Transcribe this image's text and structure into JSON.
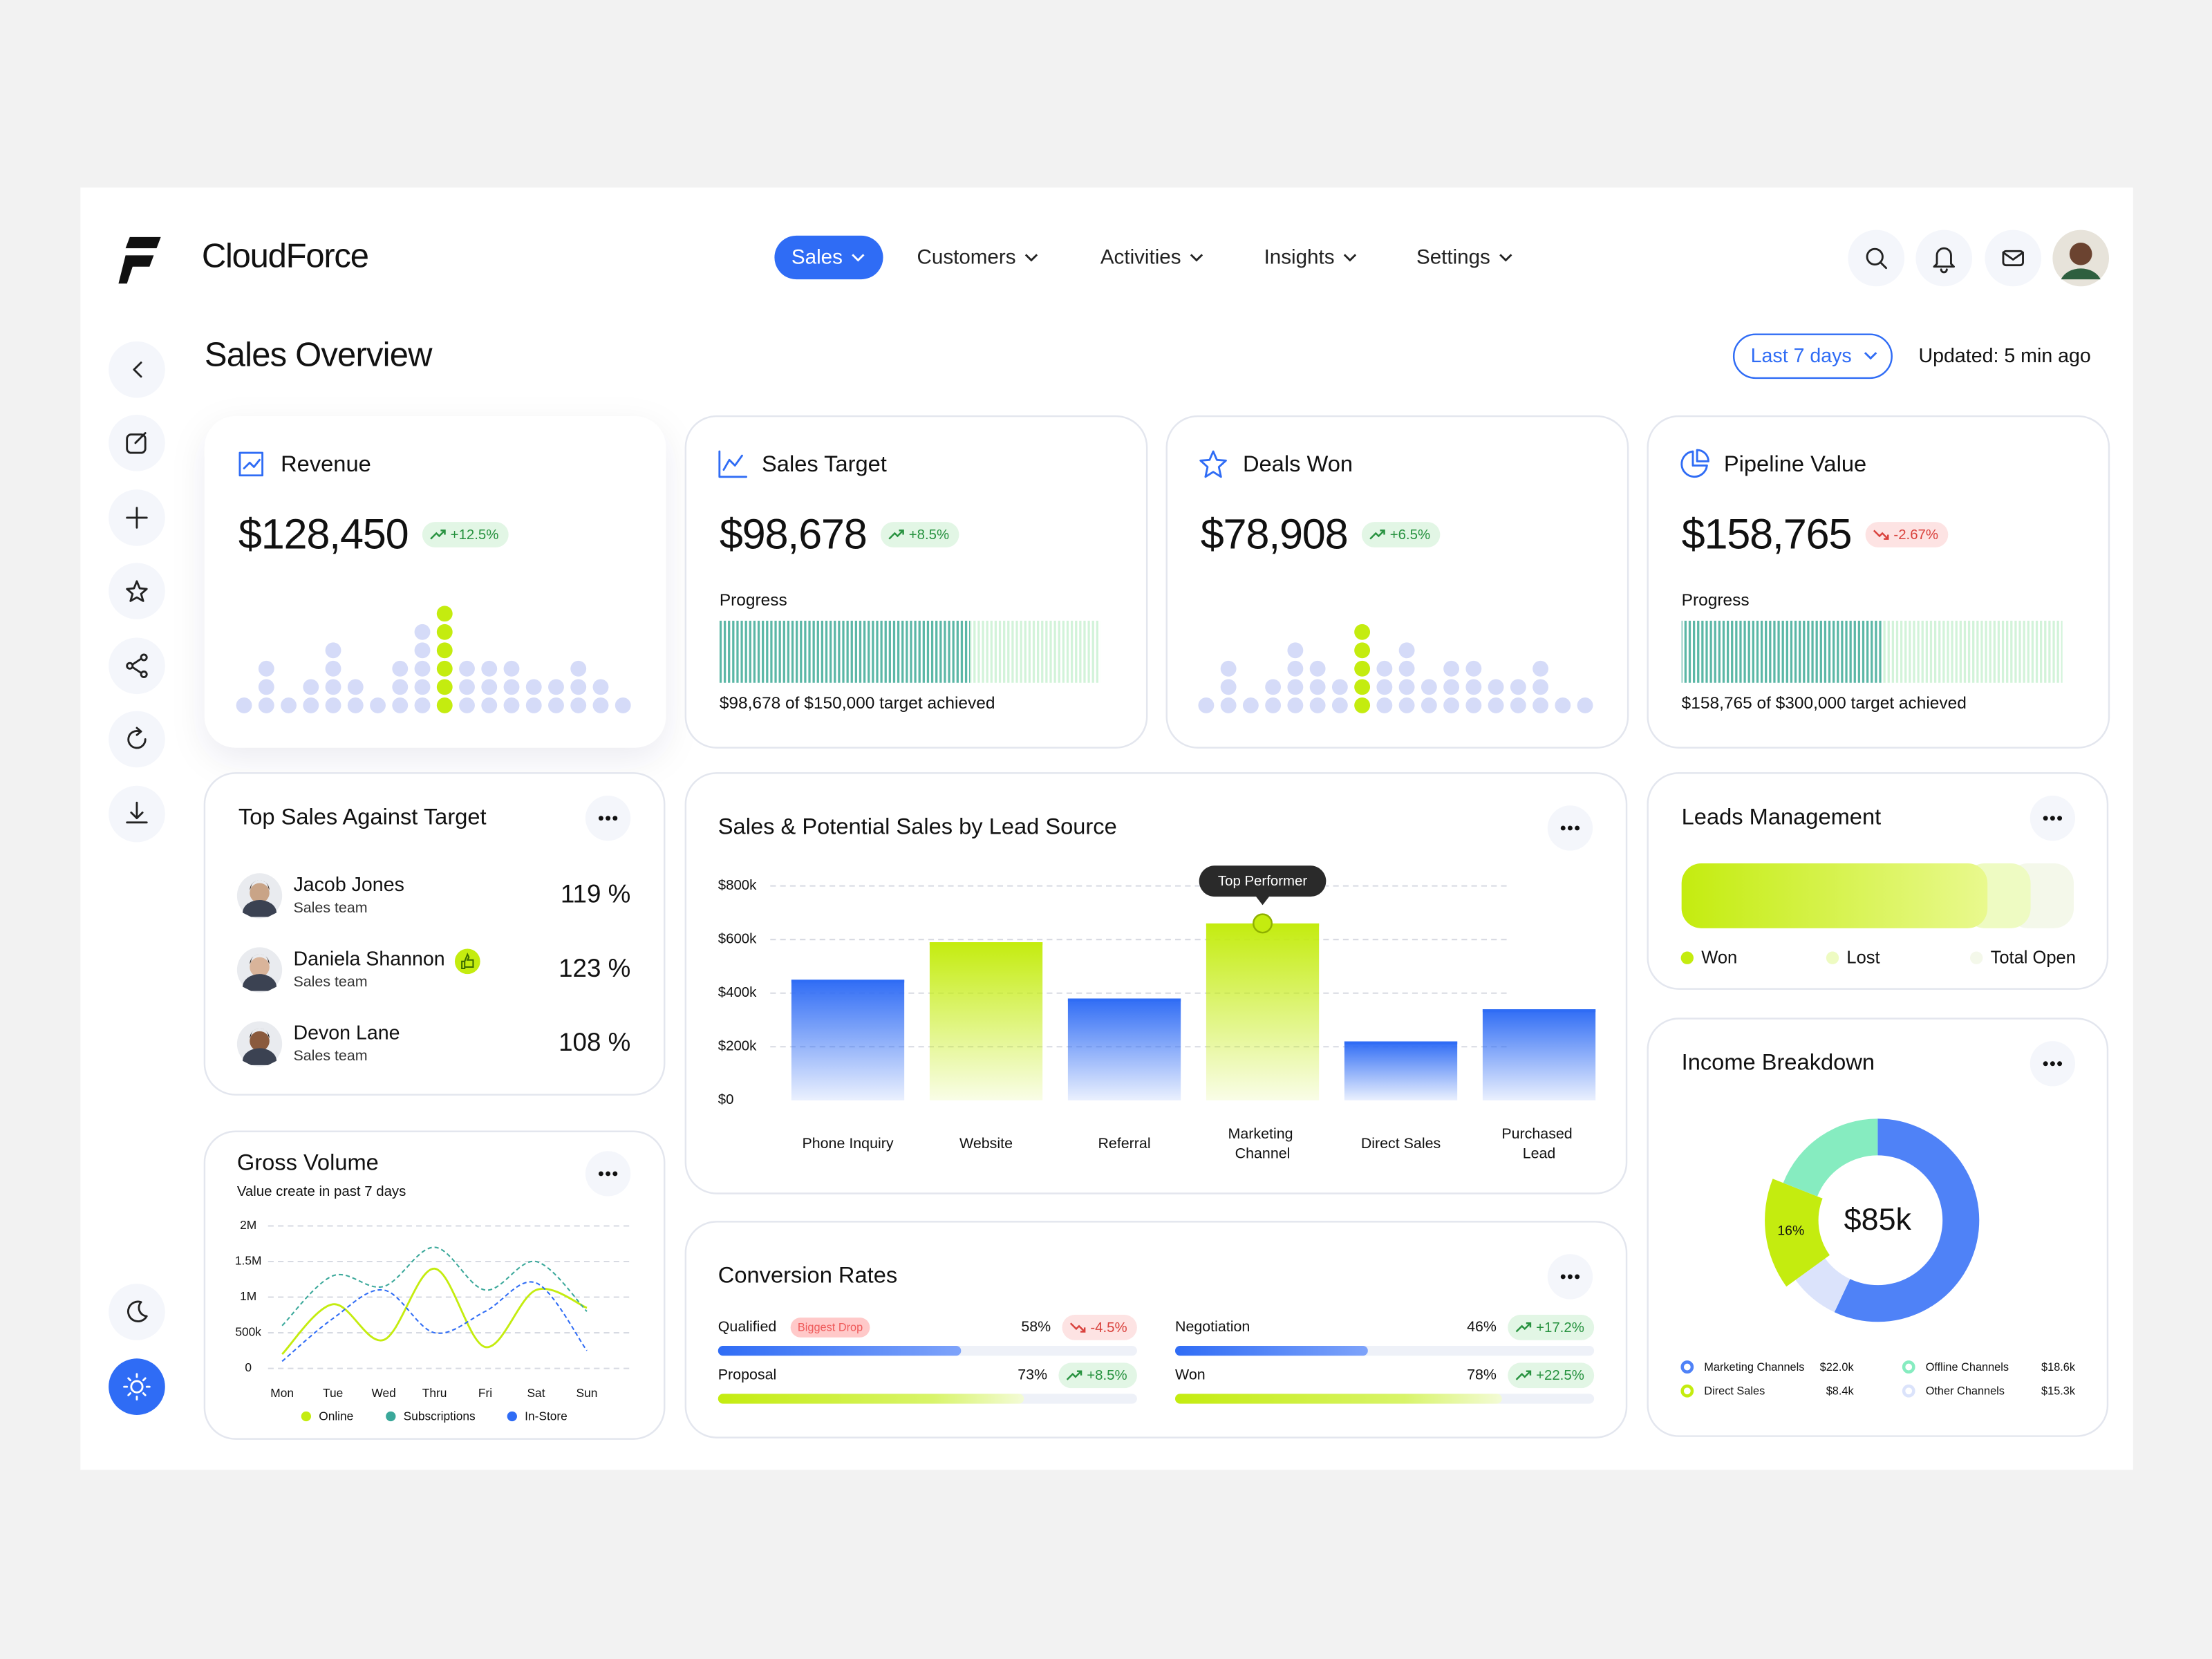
{
  "brand": "CloudForce",
  "nav": [
    {
      "label": "Sales",
      "active": true
    },
    {
      "label": "Customers",
      "active": false
    },
    {
      "label": "Activities",
      "active": false
    },
    {
      "label": "Insights",
      "active": false
    },
    {
      "label": "Settings",
      "active": false
    }
  ],
  "page_title": "Sales Overview",
  "range_button": "Last 7 days",
  "updated": "Updated: 5 min ago",
  "kpis": [
    {
      "title": "Revenue",
      "value": "$128,450",
      "change": "+12.5%",
      "trend": "up",
      "dots": [
        1,
        3,
        1,
        2,
        4,
        2,
        1,
        3,
        5,
        6,
        3,
        3,
        3,
        2,
        2,
        3,
        2,
        1
      ],
      "highlight": 9
    },
    {
      "title": "Sales Target",
      "value": "$98,678",
      "change": "+8.5%",
      "trend": "up",
      "progress_label": "Progress",
      "achieved": 98678,
      "target": 150000,
      "achieved_text": "$98,678 of $150,000 target achieved"
    },
    {
      "title": "Deals Won",
      "value": "$78,908",
      "change": "+6.5%",
      "trend": "up",
      "dots": [
        1,
        3,
        1,
        2,
        4,
        3,
        2,
        5,
        3,
        4,
        2,
        3,
        3,
        2,
        2,
        3,
        1,
        1
      ],
      "highlight": 7
    },
    {
      "title": "Pipeline Value",
      "value": "$158,765",
      "change": "-2.67%",
      "trend": "down",
      "progress_label": "Progress",
      "achieved": 158765,
      "target": 300000,
      "achieved_text": "$158,765 of $300,000 target achieved"
    }
  ],
  "top_sales": {
    "title": "Top Sales Against Target",
    "people": [
      {
        "name": "Jacob Jones",
        "team": "Sales team",
        "value": "119 %"
      },
      {
        "name": "Daniela Shannon",
        "team": "Sales team",
        "value": "123 %"
      },
      {
        "name": "Devon Lane",
        "team": "Sales team",
        "value": "108 %"
      }
    ]
  },
  "chart_data": [
    {
      "type": "bar",
      "title": "Sales & Potential Sales by Lead Source",
      "categories": [
        "Phone Inquiry",
        "Website",
        "Referral",
        "Marketing Channel",
        "Direct Sales",
        "Purchased Lead"
      ],
      "values": [
        450000,
        590000,
        380000,
        660000,
        220000,
        340000
      ],
      "colors": [
        "#2f6cf5",
        "#c4ec0f",
        "#2f6cf5",
        "#c4ec0f",
        "#2f6cf5",
        "#2f6cf5"
      ],
      "ylim": [
        0,
        800000
      ],
      "yticks": [
        {
          "value": 0,
          "label": "$0"
        },
        {
          "value": 200000,
          "label": "$200k"
        },
        {
          "value": 400000,
          "label": "$400k"
        },
        {
          "value": 600000,
          "label": "$600k"
        },
        {
          "value": 800000,
          "label": "$800k"
        }
      ],
      "grid": true,
      "annotation": {
        "text": "Top Performer",
        "category": "Marketing Channel"
      }
    },
    {
      "type": "line",
      "title": "Gross Volume",
      "subtitle": "Value create in past 7 days",
      "categories": [
        "Mon",
        "Tue",
        "Wed",
        "Thru",
        "Fri",
        "Sat",
        "Sun"
      ],
      "series": [
        {
          "name": "Online",
          "color": "#c4ec0f",
          "dashed": false,
          "values": [
            200000,
            900000,
            400000,
            1400000,
            300000,
            1100000,
            850000
          ]
        },
        {
          "name": "Subscriptions",
          "color": "#3aa89a",
          "dashed": true,
          "values": [
            600000,
            1300000,
            1150000,
            1700000,
            1100000,
            1500000,
            800000
          ]
        },
        {
          "name": "In-Store",
          "color": "#2f6cf5",
          "dashed": true,
          "values": [
            100000,
            700000,
            1100000,
            500000,
            800000,
            1200000,
            250000
          ]
        }
      ],
      "ylim": [
        0,
        2000000
      ],
      "yticks": [
        0,
        {
          "value": 500000,
          "label": "500k"
        },
        {
          "value": 1000000,
          "label": "1M"
        },
        {
          "value": 1500000,
          "label": "1.5M"
        },
        {
          "value": 2000000,
          "label": "2M"
        }
      ],
      "grid": true
    }
  ],
  "conversion": {
    "title": "Conversion Rates",
    "items": [
      {
        "label": "Qualified",
        "tag": "Biggest Drop",
        "value": 58,
        "value_label": "58%",
        "change": "-4.5%",
        "trend": "down",
        "color": "#2f6cf5"
      },
      {
        "label": "Negotiation",
        "value": 46,
        "value_label": "46%",
        "change": "+17.2%",
        "trend": "up",
        "color": "#2f6cf5"
      },
      {
        "label": "Proposal",
        "value": 73,
        "value_label": "73%",
        "change": "+8.5%",
        "trend": "up",
        "color": "#c4ec0f"
      },
      {
        "label": "Won",
        "value": 78,
        "value_label": "78%",
        "change": "+22.5%",
        "trend": "up",
        "color": "#c4ec0f"
      }
    ]
  },
  "leads": {
    "title": "Leads Management",
    "segments": [
      {
        "label": "Won",
        "value": 78,
        "color": "#c4ec0f"
      },
      {
        "label": "Lost",
        "value": 11,
        "color": "#eefbc2"
      },
      {
        "label": "Total Open",
        "value": 11,
        "color": "#f4f8ea"
      }
    ]
  },
  "income": {
    "title": "Income Breakdown",
    "center": "$85k",
    "items": [
      {
        "label": "Marketing Channels",
        "amount": "$22.0k",
        "share": 57,
        "color": "#4f82f7"
      },
      {
        "label": "Offline Channels",
        "amount": "$18.6k",
        "share": 19,
        "color": "#86ecc0"
      },
      {
        "label": "Direct Sales",
        "amount": "$8.4k",
        "share": 16,
        "share_label": "16%",
        "color": "#c4ec0f"
      },
      {
        "label": "Other Channels",
        "amount": "$15.3k",
        "share": 8,
        "color": "#dbe3fb"
      }
    ]
  }
}
